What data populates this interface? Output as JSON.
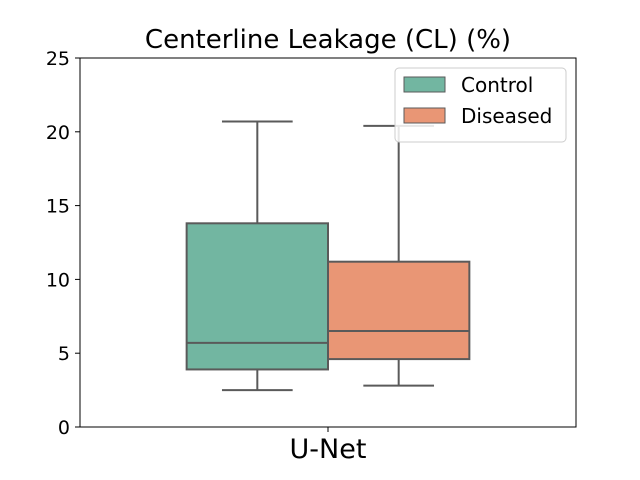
{
  "chart_data": {
    "type": "boxplot",
    "title": "Centerline Leakage (CL) (%)",
    "xlabel": "",
    "ylabel": "",
    "categories": [
      "U-Net"
    ],
    "ylim": [
      0,
      25
    ],
    "yticks": [
      0,
      5,
      10,
      15,
      20,
      25
    ],
    "grid": false,
    "legend_position": "top-right",
    "series": [
      {
        "name": "Control",
        "color": "#72b6a1",
        "boxes": [
          {
            "category": "U-Net",
            "whisker_low": 2.5,
            "q1": 3.9,
            "median": 5.7,
            "q3": 13.8,
            "whisker_high": 20.7
          }
        ]
      },
      {
        "name": "Diseased",
        "color": "#e99675",
        "boxes": [
          {
            "category": "U-Net",
            "whisker_low": 2.8,
            "q1": 4.6,
            "median": 6.5,
            "q3": 11.2,
            "whisker_high": 20.4
          }
        ]
      }
    ]
  }
}
